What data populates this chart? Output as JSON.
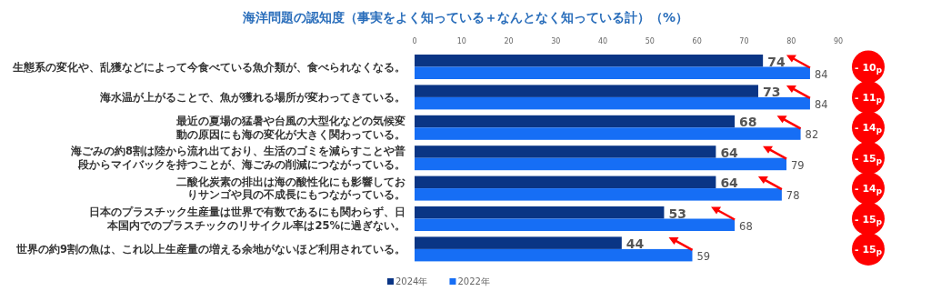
{
  "chart_data": {
    "type": "bar",
    "orientation": "horizontal",
    "title": "海洋問題の認知度（事実をよく知っている＋なんとなく知っている計）（%）",
    "categories": [
      "生態系の変化や、乱獲などによって今食べている魚介類が、食べられなくなる。",
      "海水温が上がることで、魚が獲れる場所が変わってきている。",
      "最近の夏場の猛暑や台風の大型化などの気候変動の原因にも海の変化が大きく関わっている。",
      "海ごみの約8割は陸から流れ出ており、生活のゴミを減らすことや普段からマイバックを持つことが、海ごみの削減につながっている。",
      "二酸化炭素の排出は海の酸性化にも影響しておりサンゴや貝の不成長にもつながっている。",
      "日本のプラスチック生産量は世界で有数であるにも関わらず、日本国内でのプラスチックのリサイクル率は25%に過ぎない。",
      "世界の約9割の魚は、これ以上生産量の増える余地がないほど利用されている。"
    ],
    "series": [
      {
        "name": "2024年",
        "color": "#0a3585",
        "values": [
          74,
          73,
          68,
          64,
          64,
          53,
          44
        ]
      },
      {
        "name": "2022年",
        "color": "#166ef5",
        "values": [
          84,
          84,
          82,
          79,
          78,
          68,
          59
        ]
      }
    ],
    "xlim": [
      0,
      90
    ],
    "xticks": [
      0,
      10,
      20,
      30,
      40,
      50,
      60,
      70,
      80,
      90
    ],
    "data_labels": true,
    "legend": "bottom",
    "grid": false,
    "annotations": [
      "- 10$_{p}$",
      "- 11$_{p}$",
      "- 14$_{p}$",
      "- 15$_{p}$",
      "- 14$_{p}$",
      "- 15$_{p}$",
      "- 15$_{p}$"
    ]
  }
}
